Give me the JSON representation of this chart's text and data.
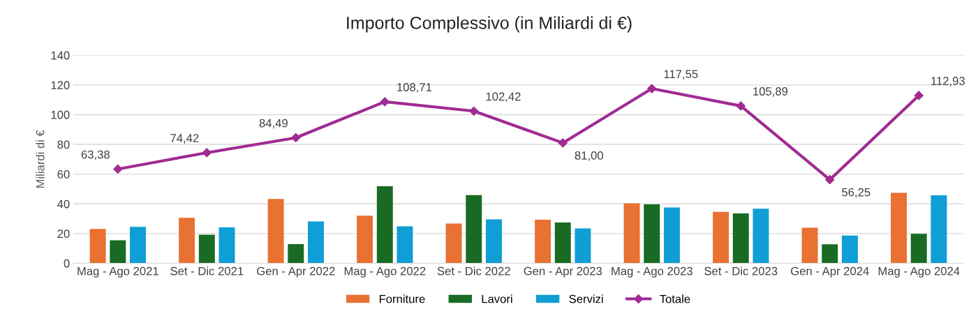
{
  "chart_data": {
    "type": "bar",
    "title": "Importo Complessivo (in Miliardi di €)",
    "ylabel": "Miliardi di €",
    "categories": [
      "Mag - Ago 2021",
      "Set - Dic 2021",
      "Gen - Apr 2022",
      "Mag - Ago 2022",
      "Set - Dic 2022",
      "Gen - Apr 2023",
      "Mag - Ago 2023",
      "Set - Dic 2023",
      "Gen - Apr 2024",
      "Mag - Ago 2024"
    ],
    "series": [
      {
        "name": "Forniture",
        "color": "#e97132",
        "values": [
          23.1,
          30.6,
          43.3,
          32.0,
          26.7,
          29.3,
          40.3,
          34.6,
          23.9,
          47.4
        ]
      },
      {
        "name": "Lavori",
        "color": "#196b24",
        "values": [
          15.5,
          19.2,
          12.9,
          51.8,
          45.9,
          27.4,
          39.7,
          33.6,
          12.8,
          19.8
        ]
      },
      {
        "name": "Servizi",
        "color": "#0f9ed5",
        "values": [
          24.5,
          24.1,
          28.2,
          24.9,
          29.6,
          23.5,
          37.5,
          36.7,
          18.6,
          45.8
        ]
      },
      {
        "name": "Totale",
        "color": "#a02b93",
        "type": "line",
        "marker": "diamond",
        "values": [
          63.38,
          74.42,
          84.49,
          108.71,
          102.42,
          81.0,
          117.55,
          105.89,
          56.25,
          112.93
        ],
        "value_labels": [
          "63,38",
          "74,42",
          "84,49",
          "108,71",
          "102,42",
          "81,00",
          "117,55",
          "105,89",
          "56,25",
          "112,93"
        ]
      }
    ],
    "ylim": [
      0,
      140
    ],
    "yticks": [
      0,
      20,
      40,
      60,
      80,
      100,
      120,
      140
    ],
    "grid": "y",
    "legend": "bottom"
  }
}
